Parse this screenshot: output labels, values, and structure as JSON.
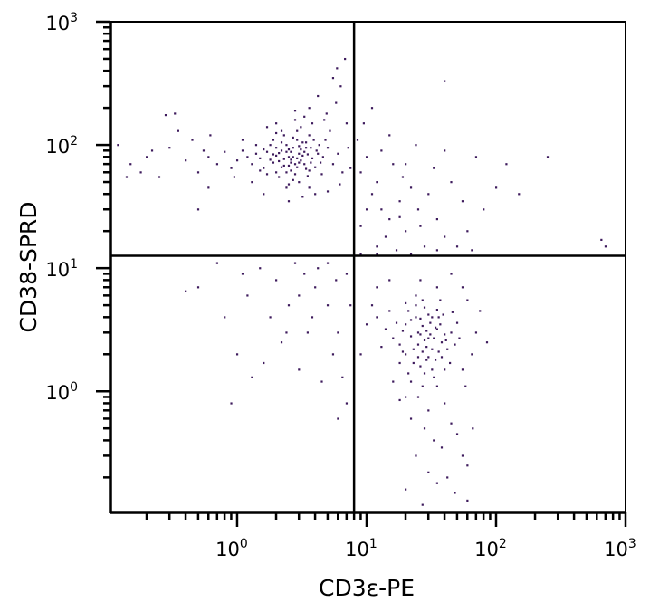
{
  "chart_data": {
    "type": "scatter",
    "xlabel": "CD3ε-PE",
    "ylabel": "CD38-SPRD",
    "xscale": "log",
    "yscale": "log",
    "xlim": [
      0.105,
      1000
    ],
    "ylim": [
      0.104,
      1000
    ],
    "x_ticks": [
      {
        "base": "10",
        "exp": "0",
        "value": 1
      },
      {
        "base": "10",
        "exp": "1",
        "value": 10
      },
      {
        "base": "10",
        "exp": "2",
        "value": 100
      },
      {
        "base": "10",
        "exp": "3",
        "value": 1000
      }
    ],
    "y_ticks": [
      {
        "base": "10",
        "exp": "0",
        "value": 1
      },
      {
        "base": "10",
        "exp": "1",
        "value": 10
      },
      {
        "base": "10",
        "exp": "2",
        "value": 100
      },
      {
        "base": "10",
        "exp": "3",
        "value": 1000
      }
    ],
    "grid": false,
    "quadrant_gates": {
      "x": 8,
      "y": 12.6
    },
    "point_color": "#3d1a5c",
    "points": [
      [
        2.7,
        80
      ],
      [
        3.1,
        75
      ],
      [
        2.2,
        90
      ],
      [
        2.5,
        68
      ],
      [
        3.4,
        95
      ],
      [
        1.9,
        72
      ],
      [
        2.9,
        110
      ],
      [
        3.6,
        62
      ],
      [
        2.1,
        55
      ],
      [
        2.4,
        100
      ],
      [
        3.0,
        85
      ],
      [
        2.6,
        72
      ],
      [
        1.7,
        88
      ],
      [
        3.8,
        78
      ],
      [
        2.8,
        58
      ],
      [
        2.3,
        120
      ],
      [
        3.3,
        70
      ],
      [
        2.0,
        82
      ],
      [
        4.1,
        90
      ],
      [
        1.6,
        65
      ],
      [
        2.7,
        95
      ],
      [
        3.2,
        105
      ],
      [
        2.5,
        80
      ],
      [
        1.8,
        100
      ],
      [
        3.5,
        84
      ],
      [
        2.2,
        66
      ],
      [
        4.4,
        72
      ],
      [
        2.9,
        130
      ],
      [
        1.5,
        78
      ],
      [
        3.0,
        50
      ],
      [
        2.6,
        88
      ],
      [
        3.9,
        110
      ],
      [
        2.1,
        74
      ],
      [
        2.4,
        60
      ],
      [
        3.7,
        95
      ],
      [
        1.4,
        85
      ],
      [
        2.8,
        70
      ],
      [
        4.6,
        80
      ],
      [
        3.1,
        140
      ],
      [
        2.0,
        95
      ],
      [
        2.3,
        77
      ],
      [
        3.4,
        64
      ],
      [
        1.9,
        110
      ],
      [
        2.7,
        52
      ],
      [
        5.0,
        95
      ],
      [
        1.3,
        70
      ],
      [
        3.6,
        120
      ],
      [
        2.5,
        92
      ],
      [
        2.9,
        78
      ],
      [
        4.0,
        66
      ],
      [
        1.7,
        58
      ],
      [
        3.3,
        88
      ],
      [
        2.2,
        105
      ],
      [
        2.6,
        62
      ],
      [
        4.8,
        110
      ],
      [
        1.6,
        92
      ],
      [
        3.0,
        98
      ],
      [
        2.4,
        45
      ],
      [
        3.8,
        150
      ],
      [
        2.1,
        86
      ],
      [
        5.5,
        70
      ],
      [
        1.2,
        80
      ],
      [
        2.8,
        160
      ],
      [
        3.5,
        56
      ],
      [
        2.3,
        68
      ],
      [
        4.3,
        100
      ],
      [
        1.8,
        76
      ],
      [
        3.2,
        82
      ],
      [
        2.0,
        60
      ],
      [
        2.7,
        115
      ],
      [
        6.0,
        85
      ],
      [
        1.4,
        100
      ],
      [
        3.7,
        72
      ],
      [
        2.5,
        48
      ],
      [
        3.1,
        92
      ],
      [
        4.5,
        58
      ],
      [
        2.2,
        130
      ],
      [
        1.9,
        84
      ],
      [
        3.4,
        105
      ],
      [
        2.6,
        76
      ],
      [
        5.2,
        130
      ],
      [
        1.5,
        62
      ],
      [
        2.9,
        66
      ],
      [
        4.2,
        85
      ],
      [
        2.4,
        88
      ],
      [
        3.6,
        45
      ],
      [
        1.1,
        90
      ],
      [
        2.0,
        125
      ],
      [
        3.0,
        72
      ],
      [
        6.5,
        60
      ],
      [
        4.9,
        180
      ],
      [
        5.8,
        220
      ],
      [
        4.2,
        250
      ],
      [
        6.3,
        300
      ],
      [
        3.6,
        200
      ],
      [
        5.5,
        350
      ],
      [
        7.0,
        150
      ],
      [
        4.7,
        160
      ],
      [
        2.8,
        190
      ],
      [
        6.8,
        500
      ],
      [
        5.9,
        420
      ],
      [
        3.3,
        170
      ],
      [
        1.3,
        50
      ],
      [
        1.0,
        75
      ],
      [
        0.9,
        65
      ],
      [
        0.8,
        88
      ],
      [
        0.7,
        70
      ],
      [
        0.6,
        80
      ],
      [
        1.1,
        110
      ],
      [
        0.95,
        55
      ],
      [
        4.0,
        40
      ],
      [
        3.2,
        38
      ],
      [
        2.5,
        35
      ],
      [
        5.0,
        42
      ],
      [
        1.6,
        40
      ],
      [
        6.2,
        48
      ],
      [
        7.5,
        65
      ],
      [
        7.2,
        95
      ],
      [
        2.0,
        150
      ],
      [
        1.7,
        140
      ],
      [
        0.12,
        100
      ],
      [
        0.15,
        70
      ],
      [
        0.2,
        80
      ],
      [
        0.25,
        55
      ],
      [
        0.3,
        95
      ],
      [
        0.35,
        130
      ],
      [
        0.18,
        60
      ],
      [
        0.4,
        75
      ],
      [
        0.45,
        110
      ],
      [
        0.5,
        60
      ],
      [
        0.55,
        90
      ],
      [
        0.62,
        120
      ],
      [
        0.33,
        180
      ],
      [
        0.28,
        175
      ],
      [
        0.6,
        45
      ],
      [
        0.14,
        55
      ],
      [
        0.5,
        30
      ],
      [
        0.22,
        90
      ],
      [
        9,
        60
      ],
      [
        11,
        40
      ],
      [
        13,
        30
      ],
      [
        15,
        25
      ],
      [
        10,
        80
      ],
      [
        12,
        50
      ],
      [
        18,
        35
      ],
      [
        20,
        20
      ],
      [
        22,
        45
      ],
      [
        25,
        30
      ],
      [
        14,
        18
      ],
      [
        16,
        70
      ],
      [
        30,
        40
      ],
      [
        35,
        25
      ],
      [
        40,
        18
      ],
      [
        28,
        15
      ],
      [
        12,
        15
      ],
      [
        9,
        22
      ],
      [
        10,
        30
      ],
      [
        17,
        14
      ],
      [
        45,
        50
      ],
      [
        55,
        35
      ],
      [
        60,
        20
      ],
      [
        50,
        15
      ],
      [
        24,
        100
      ],
      [
        8.5,
        110
      ],
      [
        9.5,
        150
      ],
      [
        11,
        200
      ],
      [
        13,
        90
      ],
      [
        19,
        55
      ],
      [
        33,
        65
      ],
      [
        40,
        90
      ],
      [
        70,
        80
      ],
      [
        120,
        70
      ],
      [
        150,
        40
      ],
      [
        250,
        80
      ],
      [
        650,
        17
      ],
      [
        700,
        15
      ],
      [
        100,
        45
      ],
      [
        80,
        30
      ],
      [
        65,
        14
      ],
      [
        35,
        14
      ],
      [
        22,
        13
      ],
      [
        12,
        13
      ],
      [
        9,
        13
      ],
      [
        40,
        330
      ],
      [
        15,
        120
      ],
      [
        26,
        22
      ],
      [
        18,
        26
      ],
      [
        20,
        70
      ],
      [
        1.5,
        10
      ],
      [
        2,
        8
      ],
      [
        3,
        6
      ],
      [
        2.5,
        5
      ],
      [
        1.8,
        4
      ],
      [
        3.5,
        3
      ],
      [
        4,
        7
      ],
      [
        5,
        5
      ],
      [
        6,
        3
      ],
      [
        7,
        9
      ],
      [
        1.2,
        6
      ],
      [
        0.8,
        4
      ],
      [
        0.5,
        7
      ],
      [
        0.4,
        6.5
      ],
      [
        1,
        2
      ],
      [
        2.2,
        2.5
      ],
      [
        3,
        1.5
      ],
      [
        4.5,
        1.2
      ],
      [
        5.5,
        2
      ],
      [
        6.5,
        1.3
      ],
      [
        1.3,
        1.3
      ],
      [
        0.9,
        0.8
      ],
      [
        2.8,
        11
      ],
      [
        4.2,
        10
      ],
      [
        5.8,
        8
      ],
      [
        7.5,
        5
      ],
      [
        7,
        0.8
      ],
      [
        3.8,
        4
      ],
      [
        2.4,
        3
      ],
      [
        1.6,
        1.7
      ],
      [
        6,
        0.6
      ],
      [
        5,
        11
      ],
      [
        3.3,
        9
      ],
      [
        0.7,
        11
      ],
      [
        1.1,
        9
      ],
      [
        28,
        2.6
      ],
      [
        25,
        3
      ],
      [
        32,
        2.2
      ],
      [
        22,
        2.8
      ],
      [
        35,
        3.2
      ],
      [
        30,
        1.9
      ],
      [
        20,
        3.5
      ],
      [
        27,
        2.1
      ],
      [
        38,
        2.5
      ],
      [
        24,
        4
      ],
      [
        31,
        3.6
      ],
      [
        26,
        1.6
      ],
      [
        18,
        2.4
      ],
      [
        40,
        2.9
      ],
      [
        29,
        3.1
      ],
      [
        23,
        2.2
      ],
      [
        34,
        1.8
      ],
      [
        21,
        4.5
      ],
      [
        36,
        4
      ],
      [
        27,
        3.4
      ],
      [
        33,
        2.7
      ],
      [
        19,
        3.1
      ],
      [
        42,
        2.2
      ],
      [
        25,
        1.9
      ],
      [
        30,
        4.2
      ],
      [
        16,
        2.7
      ],
      [
        28,
        1.4
      ],
      [
        37,
        3.5
      ],
      [
        22,
        3.8
      ],
      [
        45,
        3
      ],
      [
        26,
        2.9
      ],
      [
        32,
        1.5
      ],
      [
        20,
        2
      ],
      [
        38,
        1.9
      ],
      [
        24,
        5
      ],
      [
        29,
        2.3
      ],
      [
        35,
        4.6
      ],
      [
        17,
        3.6
      ],
      [
        41,
        2.6
      ],
      [
        23,
        1.7
      ],
      [
        31,
        2.9
      ],
      [
        27,
        5.5
      ],
      [
        14,
        3.2
      ],
      [
        48,
        2.4
      ],
      [
        25,
        2.4
      ],
      [
        34,
        3.3
      ],
      [
        21,
        1.4
      ],
      [
        39,
        4.2
      ],
      [
        30,
        2.7
      ],
      [
        19,
        2.1
      ],
      [
        44,
        1.7
      ],
      [
        26,
        3.9
      ],
      [
        33,
        1.3
      ],
      [
        15,
        4.5
      ],
      [
        36,
        2.1
      ],
      [
        28,
        4.8
      ],
      [
        22,
        1.2
      ],
      [
        50,
        3.6
      ],
      [
        29,
        1.8
      ],
      [
        40,
        1.5
      ],
      [
        13,
        2.3
      ],
      [
        24,
        6
      ],
      [
        37,
        5.5
      ],
      [
        18,
        1.7
      ],
      [
        52,
        2.7
      ],
      [
        27,
        1.1
      ],
      [
        32,
        4
      ],
      [
        20,
        5.2
      ],
      [
        46,
        4.4
      ],
      [
        12,
        4
      ],
      [
        35,
        1.1
      ],
      [
        25,
        0.9
      ],
      [
        30,
        0.7
      ],
      [
        22,
        0.6
      ],
      [
        40,
        0.8
      ],
      [
        28,
        0.5
      ],
      [
        45,
        0.55
      ],
      [
        33,
        0.4
      ],
      [
        38,
        0.35
      ],
      [
        50,
        0.45
      ],
      [
        55,
        0.3
      ],
      [
        60,
        0.25
      ],
      [
        24,
        0.3
      ],
      [
        30,
        0.22
      ],
      [
        42,
        0.2
      ],
      [
        35,
        0.18
      ],
      [
        48,
        0.15
      ],
      [
        60,
        0.13
      ],
      [
        20,
        0.16
      ],
      [
        27,
        0.12
      ],
      [
        18,
        0.85
      ],
      [
        16,
        1.2
      ],
      [
        55,
        1.5
      ],
      [
        65,
        2
      ],
      [
        70,
        3
      ],
      [
        75,
        4.5
      ],
      [
        60,
        5.5
      ],
      [
        55,
        7
      ],
      [
        85,
        2.5
      ],
      [
        10,
        3.5
      ],
      [
        11,
        5
      ],
      [
        12,
        7
      ],
      [
        9,
        2
      ],
      [
        15,
        8
      ],
      [
        45,
        9
      ],
      [
        35,
        7
      ],
      [
        26,
        8
      ],
      [
        20,
        0.9
      ],
      [
        58,
        1.1
      ],
      [
        66,
        0.5
      ]
    ]
  }
}
